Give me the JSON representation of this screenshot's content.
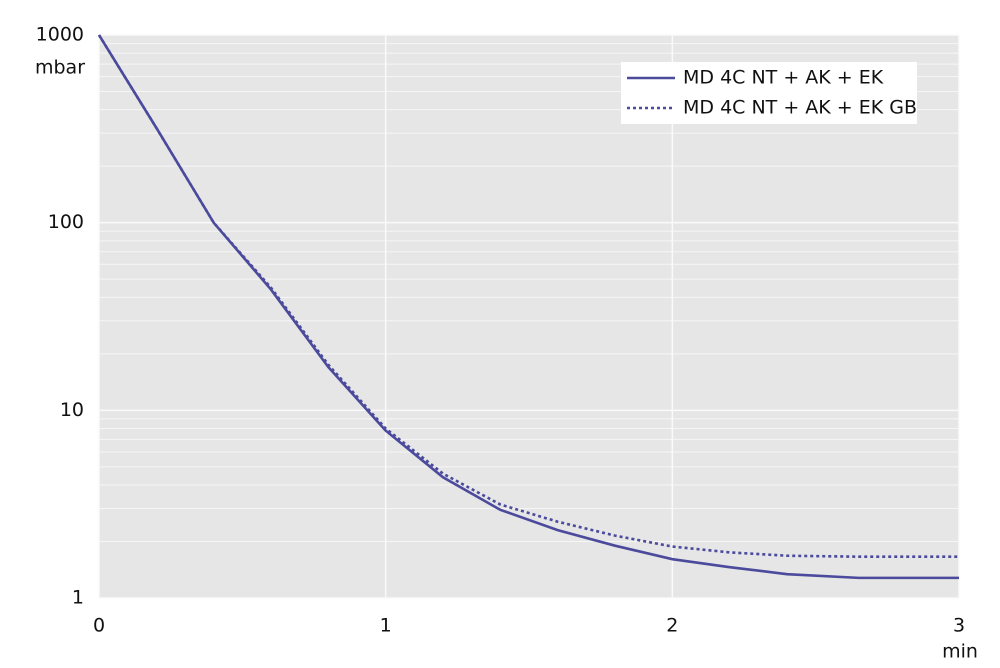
{
  "chart_data": {
    "type": "line",
    "log_y": true,
    "grid": true,
    "minor_grid": true,
    "y_label": "mbar",
    "x_label": "min",
    "xlim": [
      0,
      3
    ],
    "xticks": [
      0,
      1,
      2,
      3
    ],
    "ylim": [
      1,
      1000
    ],
    "yticks": [
      1,
      10,
      100,
      1000
    ],
    "legend": "upper right",
    "x": [
      0,
      0.2,
      0.4,
      0.6,
      0.8,
      1,
      1.2,
      1.4,
      1.6,
      1.8,
      2,
      2.2,
      2.4,
      2.65,
      3
    ],
    "series": [
      {
        "name": "MD 4C NT + AK + EK",
        "color": "#4b4a9c",
        "dash": false,
        "values": [
          1000,
          320,
          100,
          44,
          17,
          7.8,
          4.4,
          2.95,
          2.3,
          1.9,
          1.61,
          1.46,
          1.34,
          1.28,
          1.28
        ]
      },
      {
        "name": "MD 4C NT + AK + EK GB",
        "color": "#4b4a9c",
        "dash": true,
        "values": [
          1000,
          320,
          100,
          45,
          17.5,
          8,
          4.6,
          3.15,
          2.55,
          2.15,
          1.88,
          1.75,
          1.68,
          1.66,
          1.66
        ]
      }
    ]
  }
}
